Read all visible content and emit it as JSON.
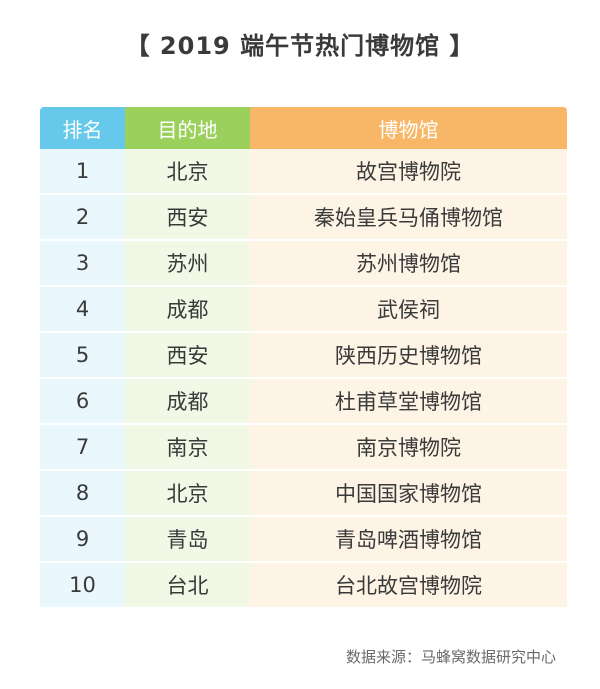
{
  "title": "【 2019 端午节热门博物馆 】",
  "source": "数据来源：马蜂窝数据研究中心",
  "chart_data": {
    "type": "table",
    "title": "【 2019 端午节热门博物馆 】",
    "columns": [
      "排名",
      "目的地",
      "博物馆"
    ],
    "rows": [
      [
        "1",
        "北京",
        "故宫博物院"
      ],
      [
        "2",
        "西安",
        "秦始皇兵马俑博物馆"
      ],
      [
        "3",
        "苏州",
        "苏州博物馆"
      ],
      [
        "4",
        "成都",
        "武侯祠"
      ],
      [
        "5",
        "西安",
        "陕西历史博物馆"
      ],
      [
        "6",
        "成都",
        "杜甫草堂博物馆"
      ],
      [
        "7",
        "南京",
        "南京博物院"
      ],
      [
        "8",
        "北京",
        "中国国家博物馆"
      ],
      [
        "9",
        "青岛",
        "青岛啤酒博物馆"
      ],
      [
        "10",
        "台北",
        "台北故宫博物院"
      ]
    ]
  },
  "colors": {
    "rank_header": "#66c8ea",
    "destination_header": "#9bd05c",
    "museum_header": "#f7b766",
    "rank_cell": "#eaf7fc",
    "destination_cell": "#f1f8e6",
    "museum_cell": "#fdf4e5"
  }
}
